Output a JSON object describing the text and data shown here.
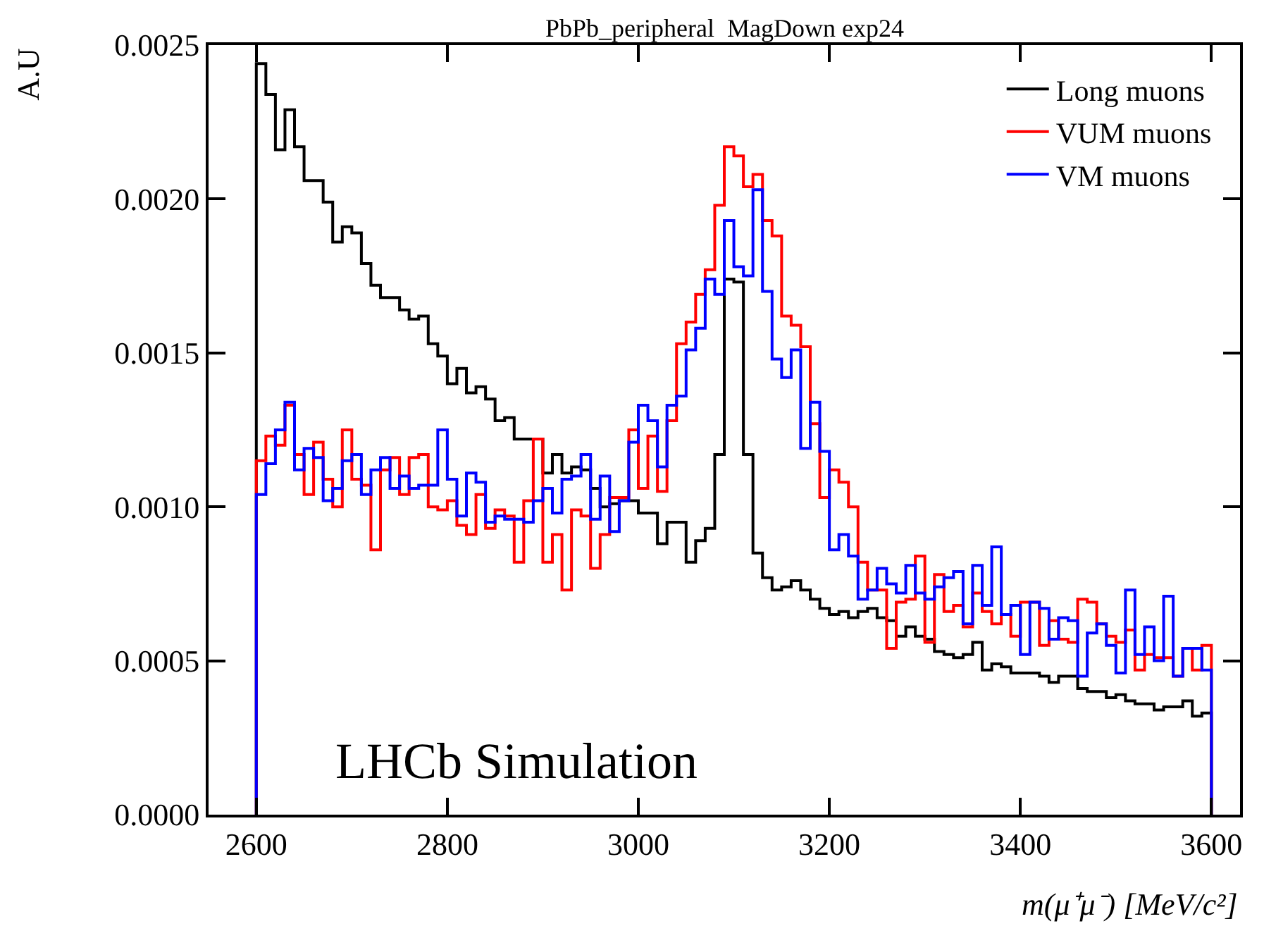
{
  "chart_data": {
    "type": "histogram",
    "title": "PbPb_peripheral  MagDown exp24",
    "xlabel": "m(μ⁺μ⁻) [MeV/c²]",
    "ylabel": "A.U",
    "annotations": [
      "LHCb Simulation"
    ],
    "bins": [
      2600,
      2610,
      2620,
      2630,
      2640,
      2650,
      2660,
      2670,
      2680,
      2690,
      2700,
      2710,
      2720,
      2730,
      2740,
      2750,
      2760,
      2770,
      2780,
      2790,
      2800,
      2810,
      2820,
      2830,
      2840,
      2850,
      2860,
      2870,
      2880,
      2890,
      2900,
      2910,
      2920,
      2930,
      2940,
      2950,
      2960,
      2970,
      2980,
      2990,
      3000,
      3010,
      3020,
      3030,
      3040,
      3050,
      3060,
      3070,
      3080,
      3090,
      3100,
      3110,
      3120,
      3130,
      3140,
      3150,
      3160,
      3170,
      3180,
      3190,
      3200,
      3210,
      3220,
      3230,
      3240,
      3250,
      3260,
      3270,
      3280,
      3290,
      3300,
      3310,
      3320,
      3330,
      3340,
      3350,
      3360,
      3370,
      3380,
      3390,
      3400,
      3410,
      3420,
      3430,
      3440,
      3450,
      3460,
      3470,
      3480,
      3490,
      3500,
      3510,
      3520,
      3530,
      3540,
      3550,
      3560,
      3570,
      3580,
      3590,
      3600
    ],
    "series": [
      {
        "name": "Long muons",
        "color": "#000000",
        "values": [
          0.00244,
          0.00234,
          0.00216,
          0.00229,
          0.00217,
          0.00206,
          0.00206,
          0.00199,
          0.00186,
          0.00191,
          0.00189,
          0.00179,
          0.00172,
          0.00168,
          0.00168,
          0.00164,
          0.00161,
          0.00162,
          0.00153,
          0.00149,
          0.0014,
          0.00145,
          0.00137,
          0.00139,
          0.00135,
          0.00128,
          0.00129,
          0.00122,
          0.00122,
          0.00122,
          0.00111,
          0.00117,
          0.00111,
          0.00113,
          0.00112,
          0.00106,
          0.001,
          0.00101,
          0.00102,
          0.00102,
          0.00098,
          0.00098,
          0.00088,
          0.00095,
          0.00095,
          0.00082,
          0.00089,
          0.00093,
          0.00117,
          0.00174,
          0.00173,
          0.00117,
          0.00085,
          0.00077,
          0.00073,
          0.00074,
          0.00076,
          0.00073,
          0.0007,
          0.00067,
          0.00065,
          0.00066,
          0.00064,
          0.00066,
          0.00067,
          0.00064,
          0.00063,
          0.00058,
          0.00061,
          0.00058,
          0.00057,
          0.00053,
          0.00052,
          0.00051,
          0.00052,
          0.00056,
          0.00047,
          0.00049,
          0.00048,
          0.00046,
          0.00046,
          0.00046,
          0.00045,
          0.00043,
          0.00045,
          0.00045,
          0.00041,
          0.0004,
          0.0004,
          0.00038,
          0.00039,
          0.00037,
          0.00036,
          0.00036,
          0.00034,
          0.00035,
          0.00035,
          0.00037,
          0.00032,
          0.00033
        ]
      },
      {
        "name": "VUM muons",
        "color": "#ff0000",
        "values": [
          0.00115,
          0.00123,
          0.0012,
          0.00133,
          0.00117,
          0.00104,
          0.00121,
          0.00109,
          0.001,
          0.00125,
          0.00109,
          0.00107,
          0.00086,
          0.00112,
          0.00116,
          0.00104,
          0.00116,
          0.00117,
          0.001,
          0.00099,
          0.00102,
          0.00094,
          0.00091,
          0.00104,
          0.00093,
          0.00099,
          0.00097,
          0.00082,
          0.00102,
          0.00122,
          0.00082,
          0.00091,
          0.00073,
          0.00099,
          0.00097,
          0.0008,
          0.00091,
          0.00103,
          0.00103,
          0.00125,
          0.00106,
          0.00123,
          0.00105,
          0.00128,
          0.00153,
          0.0016,
          0.00169,
          0.00177,
          0.00198,
          0.00217,
          0.00214,
          0.00204,
          0.00208,
          0.00193,
          0.00188,
          0.00162,
          0.00159,
          0.00152,
          0.00127,
          0.00103,
          0.00112,
          0.00108,
          0.001,
          0.00082,
          0.00073,
          0.00073,
          0.00054,
          0.00069,
          0.0007,
          0.00084,
          0.00056,
          0.00078,
          0.00066,
          0.00068,
          0.00061,
          0.00072,
          0.00066,
          0.00062,
          0.00065,
          0.00058,
          0.00069,
          0.00069,
          0.00055,
          0.00063,
          0.00057,
          0.00056,
          0.0007,
          0.00069,
          0.00062,
          0.00058,
          0.00056,
          0.0006,
          0.00047,
          0.00052,
          0.00051,
          0.00051,
          0.00045,
          0.00054,
          0.00047,
          0.00055
        ]
      },
      {
        "name": "VM muons",
        "color": "#0000ff",
        "values": [
          0.00104,
          0.00114,
          0.00125,
          0.00134,
          0.00112,
          0.00119,
          0.00116,
          0.00102,
          0.00106,
          0.00115,
          0.00117,
          0.00104,
          0.00112,
          0.00116,
          0.00106,
          0.0011,
          0.00106,
          0.00107,
          0.00107,
          0.00125,
          0.00109,
          0.00097,
          0.00111,
          0.00108,
          0.00095,
          0.00097,
          0.00096,
          0.00096,
          0.00095,
          0.00102,
          0.00106,
          0.00098,
          0.00109,
          0.0011,
          0.00117,
          0.00096,
          0.0011,
          0.00092,
          0.00102,
          0.00121,
          0.00133,
          0.00128,
          0.00113,
          0.00133,
          0.00136,
          0.00151,
          0.00158,
          0.00174,
          0.00169,
          0.00193,
          0.00178,
          0.00175,
          0.00203,
          0.0017,
          0.00148,
          0.00142,
          0.00151,
          0.00119,
          0.00134,
          0.00118,
          0.00086,
          0.00091,
          0.00084,
          0.0007,
          0.00073,
          0.0008,
          0.00075,
          0.00072,
          0.00081,
          0.00072,
          0.0007,
          0.00074,
          0.00077,
          0.00079,
          0.00062,
          0.00081,
          0.00068,
          0.00087,
          0.00065,
          0.00068,
          0.00052,
          0.00069,
          0.00067,
          0.00057,
          0.00064,
          0.00063,
          0.00045,
          0.00059,
          0.00062,
          0.00055,
          0.00046,
          0.00073,
          0.00052,
          0.00061,
          0.0005,
          0.00071,
          0.00045,
          0.00054,
          0.00054,
          0.00047
        ]
      }
    ],
    "xlim": [
      2550,
      3630
    ],
    "xticks": [
      2600,
      2800,
      3000,
      3200,
      3400,
      3600
    ],
    "ylim": [
      0,
      0.0025
    ],
    "yticks": [
      {
        "value": 0,
        "label": "0.0000"
      },
      {
        "value": 0.0005,
        "label": "0.0005"
      },
      {
        "value": 0.001,
        "label": "0.0010"
      },
      {
        "value": 0.0015,
        "label": "0.0015"
      },
      {
        "value": 0.002,
        "label": "0.0020"
      },
      {
        "value": 0.0025,
        "label": "0.0025"
      }
    ],
    "legend": "top right"
  }
}
